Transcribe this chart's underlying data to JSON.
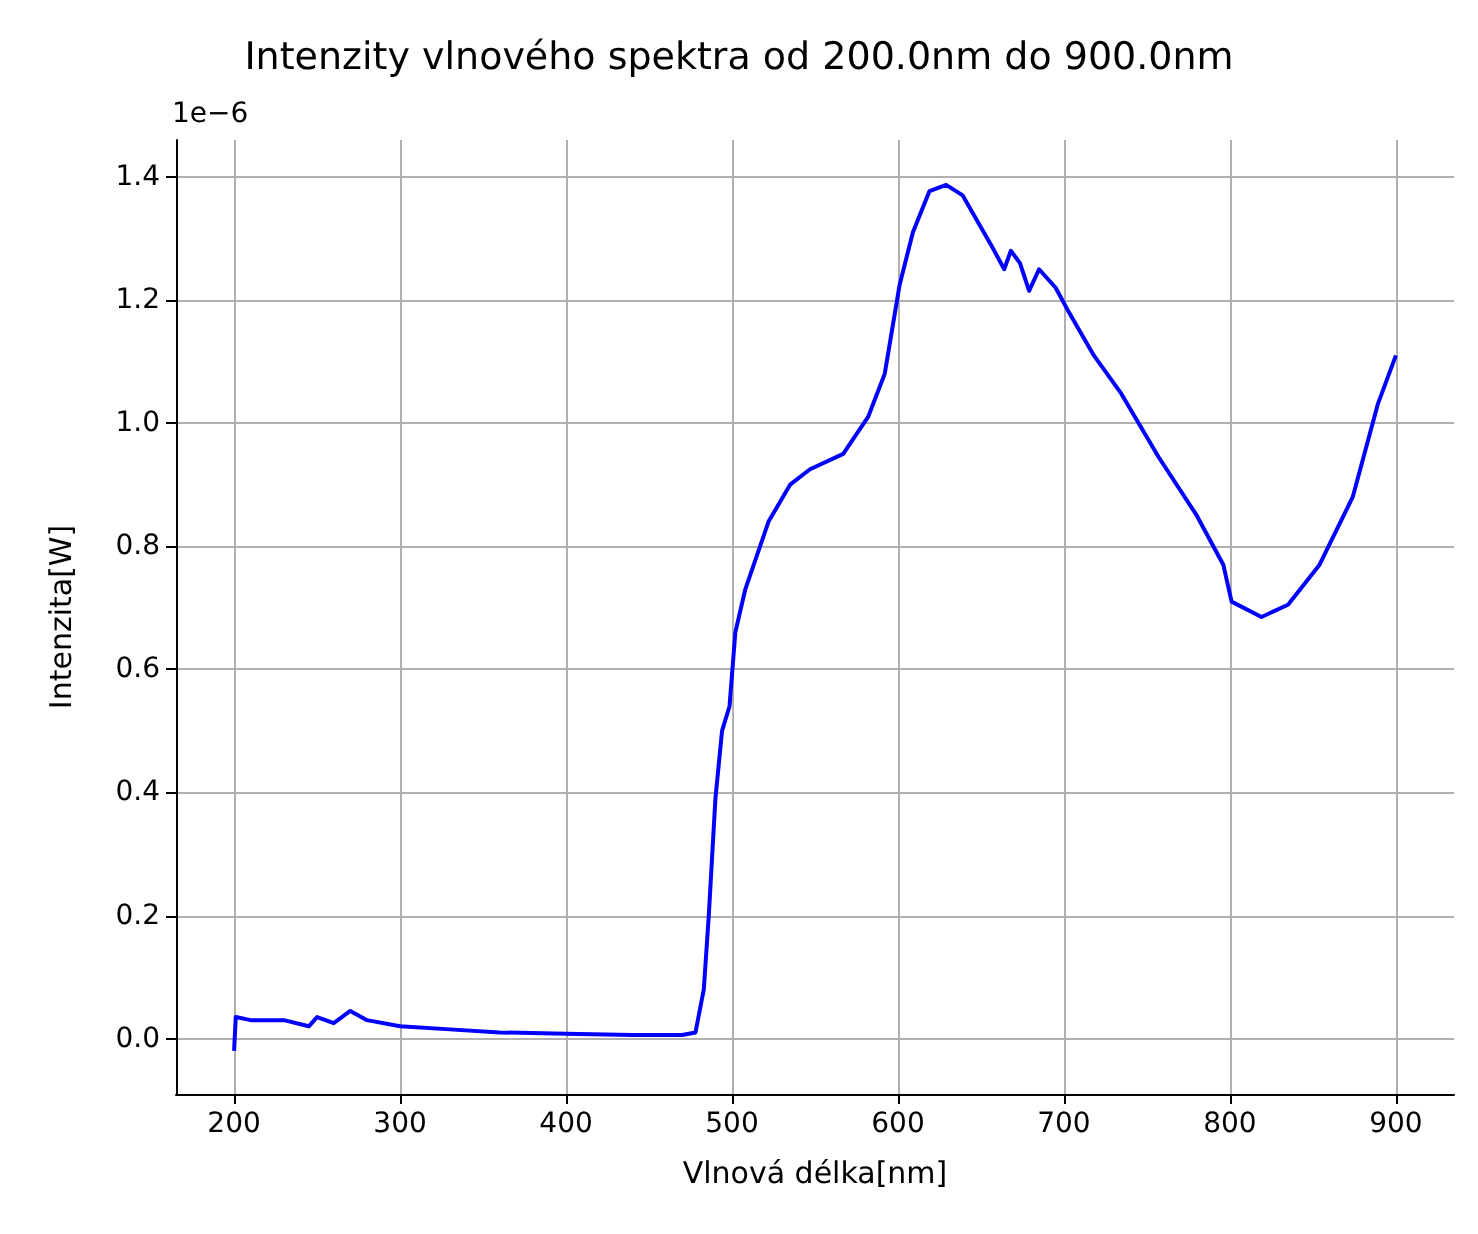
{
  "chart_data": {
    "type": "line",
    "title": "Intenzity vlnového spektra od 200.0nm do 900.0nm",
    "xlabel": "Vlnová délka[nm]",
    "ylabel": "Intenzita[W]",
    "annotations": [
      "1e−6"
    ],
    "x": [
      200,
      201,
      210,
      230,
      245,
      250,
      260,
      270,
      280,
      300,
      330,
      360,
      400,
      440,
      470,
      478,
      483,
      486,
      490,
      494,
      498.5,
      502,
      508,
      522,
      535,
      547,
      567,
      582,
      592,
      601,
      609,
      619,
      629,
      639,
      656,
      664,
      668,
      673.5,
      679,
      685,
      695,
      703,
      718,
      734,
      757,
      780,
      796,
      801,
      819,
      835,
      854,
      874,
      889,
      900
    ],
    "series": [
      {
        "color": "#0000ff",
        "values": [
          -0.02,
          0.035,
          0.03,
          0.03,
          0.02,
          0.035,
          0.025,
          0.045,
          0.03,
          0.02,
          0.015,
          0.01,
          0.008,
          0.006,
          0.006,
          0.01,
          0.08,
          0.2,
          0.39,
          0.5,
          0.54,
          0.66,
          0.73,
          0.84,
          0.9,
          0.925,
          0.95,
          1.01,
          1.08,
          1.225,
          1.31,
          1.377,
          1.387,
          1.37,
          1.29,
          1.25,
          1.28,
          1.26,
          1.215,
          1.25,
          1.22,
          1.18,
          1.11,
          1.05,
          0.945,
          0.85,
          0.77,
          0.71,
          0.685,
          0.705,
          0.77,
          0.88,
          1.03,
          1.11
        ]
      }
    ],
    "xlim": [
      165,
      935
    ],
    "xticks": [
      200,
      300,
      400,
      500,
      600,
      700,
      800,
      900
    ],
    "ylim": [
      -0.09,
      1.46
    ],
    "yticks": [
      {
        "value": 0,
        "label": "0.0"
      },
      {
        "value": 0.2,
        "label": "0.2"
      },
      {
        "value": 0.4,
        "label": "0.4"
      },
      {
        "value": 0.6,
        "label": "0.6"
      },
      {
        "value": 0.8,
        "label": "0.8"
      },
      {
        "value": 1,
        "label": "1.0"
      },
      {
        "value": 1.2,
        "label": "1.2"
      },
      {
        "value": 1.4,
        "label": "1.4"
      }
    ],
    "grid": true,
    "marker": "none",
    "line_style": "solid"
  }
}
